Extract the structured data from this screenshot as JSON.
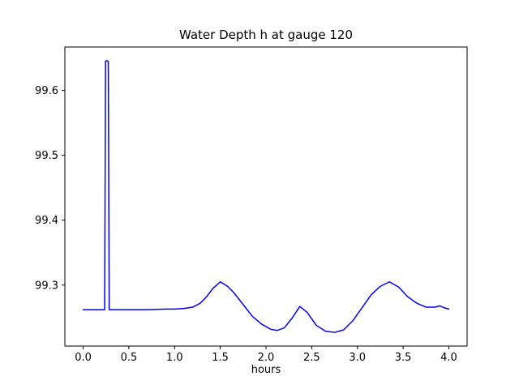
{
  "chart_data": {
    "type": "line",
    "title": "Water Depth h at gauge 120",
    "xlabel": "hours",
    "ylabel": "",
    "xlim": [
      -0.2,
      4.2
    ],
    "ylim": [
      99.206,
      99.667
    ],
    "xtick_values": [
      0.0,
      0.5,
      1.0,
      1.5,
      2.0,
      2.5,
      3.0,
      3.5,
      4.0
    ],
    "xtick_labels": [
      "0.0",
      "0.5",
      "1.0",
      "1.5",
      "2.0",
      "2.5",
      "3.0",
      "3.5",
      "4.0"
    ],
    "ytick_values": [
      99.3,
      99.4,
      99.5,
      99.6
    ],
    "ytick_labels": [
      "99.3",
      "99.4",
      "99.5",
      "99.6"
    ],
    "grid": false,
    "legend": "none",
    "line_color": "#0000ff",
    "axis_color": "#000000",
    "series": [
      {
        "name": "Water depth h",
        "x": [
          0.0,
          0.05,
          0.1,
          0.15,
          0.2,
          0.235,
          0.245,
          0.255,
          0.275,
          0.285,
          0.295,
          0.35,
          0.5,
          0.7,
          0.9,
          1.0,
          1.1,
          1.2,
          1.28,
          1.35,
          1.42,
          1.5,
          1.58,
          1.65,
          1.75,
          1.85,
          1.95,
          2.05,
          2.12,
          2.2,
          2.28,
          2.37,
          2.45,
          2.55,
          2.65,
          2.75,
          2.85,
          2.95,
          3.05,
          3.15,
          3.25,
          3.35,
          3.45,
          3.55,
          3.65,
          3.75,
          3.85,
          3.9,
          3.95,
          4.0
        ],
        "y": [
          99.262,
          99.262,
          99.262,
          99.262,
          99.262,
          99.262,
          99.645,
          99.646,
          99.645,
          99.262,
          99.262,
          99.262,
          99.262,
          99.262,
          99.263,
          99.263,
          99.264,
          99.266,
          99.272,
          99.282,
          99.295,
          99.305,
          99.298,
          99.288,
          99.27,
          99.252,
          99.24,
          99.232,
          99.23,
          99.234,
          99.248,
          99.267,
          99.258,
          99.238,
          99.229,
          99.227,
          99.231,
          99.245,
          99.265,
          99.285,
          99.298,
          99.305,
          99.297,
          99.282,
          99.272,
          99.266,
          99.266,
          99.268,
          99.265,
          99.263
        ]
      }
    ]
  }
}
